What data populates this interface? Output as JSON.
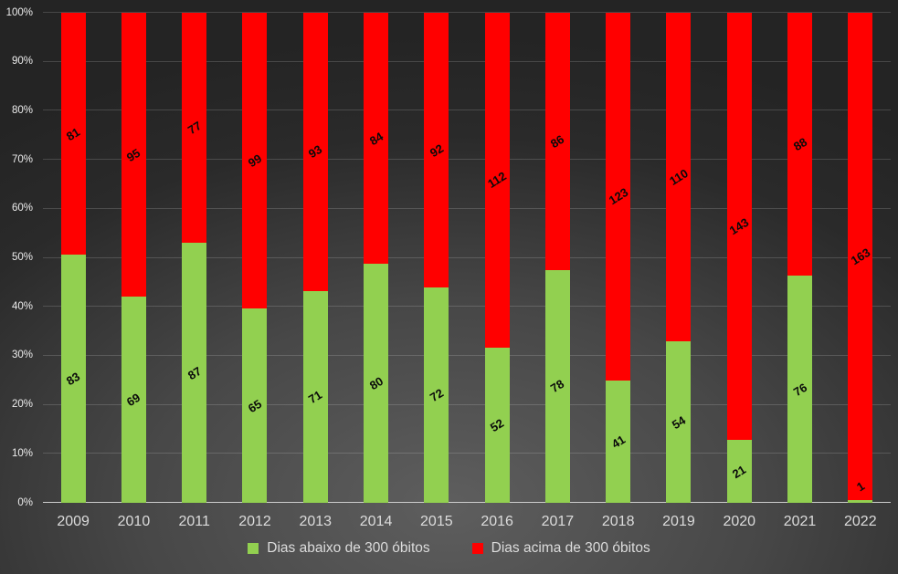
{
  "chart_data": {
    "type": "bar",
    "stacked": "percent",
    "title": "",
    "xlabel": "",
    "ylabel": "",
    "categories": [
      "2009",
      "2010",
      "2011",
      "2012",
      "2013",
      "2014",
      "2015",
      "2016",
      "2017",
      "2018",
      "2019",
      "2020",
      "2021",
      "2022"
    ],
    "series": [
      {
        "key": "abaixo",
        "name": "Dias abaixo de 300 óbitos",
        "color": "#92D050",
        "values": [
          83,
          69,
          87,
          65,
          71,
          80,
          72,
          52,
          78,
          41,
          54,
          21,
          76,
          1
        ]
      },
      {
        "key": "acima",
        "name": "Dias acima de 300 óbitos",
        "color": "#FF0000",
        "values": [
          81,
          95,
          77,
          99,
          93,
          84,
          92,
          112,
          86,
          123,
          110,
          143,
          88,
          163
        ]
      }
    ],
    "y_axis": {
      "min": 0,
      "max": 100,
      "unit": "percent",
      "ticks": [
        "0%",
        "10%",
        "20%",
        "30%",
        "40%",
        "50%",
        "60%",
        "70%",
        "80%",
        "90%",
        "100%"
      ]
    },
    "grid": true,
    "legend_position": "bottom"
  },
  "colors": {
    "background_center": "#5e5e5e",
    "background_edge": "#242424",
    "gridline": "rgba(255,255,255,0.16)",
    "axis_line": "#cdcdcd",
    "axis_text": "#ededed",
    "category_text": "#dcdcdc",
    "data_label_text": "#0a0a0a"
  }
}
